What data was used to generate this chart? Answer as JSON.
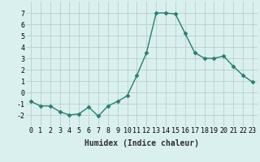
{
  "x": [
    0,
    1,
    2,
    3,
    4,
    5,
    6,
    7,
    8,
    9,
    10,
    11,
    12,
    13,
    14,
    15,
    16,
    17,
    18,
    19,
    20,
    21,
    22,
    23
  ],
  "y": [
    -0.8,
    -1.2,
    -1.2,
    -1.7,
    -2.0,
    -1.9,
    -1.3,
    -2.1,
    -1.2,
    -0.8,
    -0.3,
    1.5,
    3.5,
    7.0,
    7.0,
    6.9,
    5.2,
    3.5,
    3.0,
    3.0,
    3.2,
    2.3,
    1.5,
    0.9
  ],
  "line_color": "#2e7d6e",
  "marker": "D",
  "marker_size": 2.5,
  "bg_color": "#d9f0ef",
  "grid_color": "#b0c8c8",
  "xlabel": "Humidex (Indice chaleur)",
  "ylim": [
    -3,
    8
  ],
  "xlim": [
    -0.5,
    23.5
  ],
  "yticks": [
    -2,
    -1,
    0,
    1,
    2,
    3,
    4,
    5,
    6,
    7
  ],
  "xticks": [
    0,
    1,
    2,
    3,
    4,
    5,
    6,
    7,
    8,
    9,
    10,
    11,
    12,
    13,
    14,
    15,
    16,
    17,
    18,
    19,
    20,
    21,
    22,
    23
  ],
  "xtick_labels": [
    "0",
    "1",
    "2",
    "3",
    "4",
    "5",
    "6",
    "7",
    "8",
    "9",
    "10",
    "11",
    "12",
    "13",
    "14",
    "15",
    "16",
    "17",
    "18",
    "19",
    "20",
    "21",
    "22",
    "23"
  ],
  "xlabel_fontsize": 7,
  "tick_fontsize": 6,
  "line_width": 1.0
}
